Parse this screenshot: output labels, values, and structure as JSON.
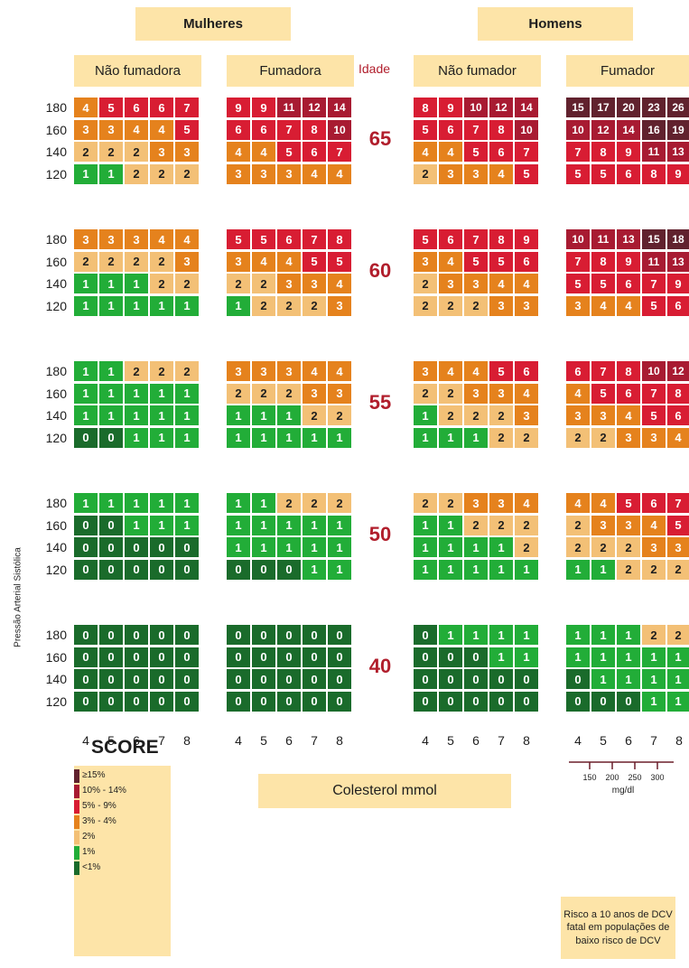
{
  "colors": {
    "5": "#61222e",
    "4": "#a81b32",
    "3": "#d81d33",
    "2": "#e5821d",
    "1": "#f3c076",
    "0": "#22ad38",
    "-1": "#1a6b2b",
    "panel_bg": "#fde4a8",
    "age_label": "#b11e2c"
  },
  "headers": {
    "women": "Mulheres",
    "men": "Homens",
    "idade": "Idade",
    "groups": [
      "Não fumadora",
      "Fumadora",
      "Não fumador",
      "Fumador"
    ]
  },
  "axis": {
    "ylabel": "Pressão Arterial Sistólica",
    "xlabel": "Colesterol mmol",
    "sbp_ticks": [
      "180",
      "160",
      "140",
      "120"
    ],
    "chol_ticks": [
      "4",
      "5",
      "6",
      "7",
      "8"
    ],
    "mgdl_ticks": [
      "150",
      "200",
      "250",
      "300"
    ],
    "mgdl_unit": "mg/dl"
  },
  "chart_data": {
    "type": "heatmap",
    "title": "SCORE",
    "ages": [
      "65",
      "60",
      "55",
      "50",
      "40"
    ],
    "group_order": [
      "Não fumadora",
      "Fumadora",
      "Não fumador",
      "Fumador"
    ],
    "rows_sbp": [
      180,
      160,
      140,
      120
    ],
    "cols_cholesterol_mmol": [
      4,
      5,
      6,
      7,
      8
    ],
    "grids": {
      "65": [
        [
          [
            4,
            5,
            6,
            6,
            7
          ],
          [
            3,
            3,
            4,
            4,
            5
          ],
          [
            2,
            2,
            2,
            3,
            3
          ],
          [
            1,
            1,
            2,
            2,
            2
          ]
        ],
        [
          [
            9,
            9,
            11,
            12,
            14
          ],
          [
            6,
            6,
            7,
            8,
            10
          ],
          [
            4,
            4,
            5,
            6,
            7
          ],
          [
            3,
            3,
            3,
            4,
            4
          ]
        ],
        [
          [
            8,
            9,
            10,
            12,
            14
          ],
          [
            5,
            6,
            7,
            8,
            10
          ],
          [
            4,
            4,
            5,
            6,
            7
          ],
          [
            2,
            3,
            3,
            4,
            5
          ]
        ],
        [
          [
            15,
            17,
            20,
            23,
            26
          ],
          [
            10,
            12,
            14,
            16,
            19
          ],
          [
            7,
            8,
            9,
            11,
            13
          ],
          [
            5,
            5,
            6,
            8,
            9
          ]
        ]
      ],
      "60": [
        [
          [
            3,
            3,
            3,
            4,
            4
          ],
          [
            2,
            2,
            2,
            2,
            3
          ],
          [
            1,
            1,
            1,
            2,
            2
          ],
          [
            1,
            1,
            1,
            1,
            1
          ]
        ],
        [
          [
            5,
            5,
            6,
            7,
            8
          ],
          [
            3,
            4,
            4,
            5,
            5
          ],
          [
            2,
            2,
            3,
            3,
            4
          ],
          [
            1,
            2,
            2,
            2,
            3
          ]
        ],
        [
          [
            5,
            6,
            7,
            8,
            9
          ],
          [
            3,
            4,
            5,
            5,
            6
          ],
          [
            2,
            3,
            3,
            4,
            4
          ],
          [
            2,
            2,
            2,
            3,
            3
          ]
        ],
        [
          [
            10,
            11,
            13,
            15,
            18
          ],
          [
            7,
            8,
            9,
            11,
            13
          ],
          [
            5,
            5,
            6,
            7,
            9
          ],
          [
            3,
            4,
            4,
            5,
            6
          ]
        ]
      ],
      "55": [
        [
          [
            1,
            1,
            2,
            2,
            2
          ],
          [
            1,
            1,
            1,
            1,
            1
          ],
          [
            1,
            1,
            1,
            1,
            1
          ],
          [
            0,
            0,
            1,
            1,
            1
          ]
        ],
        [
          [
            3,
            3,
            3,
            4,
            4
          ],
          [
            2,
            2,
            2,
            3,
            3
          ],
          [
            1,
            1,
            1,
            2,
            2
          ],
          [
            1,
            1,
            1,
            1,
            1
          ]
        ],
        [
          [
            3,
            4,
            4,
            5,
            6
          ],
          [
            2,
            2,
            3,
            3,
            4
          ],
          [
            1,
            2,
            2,
            2,
            3
          ],
          [
            1,
            1,
            1,
            2,
            2
          ]
        ],
        [
          [
            6,
            7,
            8,
            10,
            12
          ],
          [
            4,
            5,
            6,
            7,
            8
          ],
          [
            3,
            3,
            4,
            5,
            6
          ],
          [
            2,
            2,
            3,
            3,
            4
          ]
        ]
      ],
      "50": [
        [
          [
            1,
            1,
            1,
            1,
            1
          ],
          [
            0,
            0,
            1,
            1,
            1
          ],
          [
            0,
            0,
            0,
            0,
            0
          ],
          [
            0,
            0,
            0,
            0,
            0
          ]
        ],
        [
          [
            1,
            1,
            2,
            2,
            2
          ],
          [
            1,
            1,
            1,
            1,
            1
          ],
          [
            1,
            1,
            1,
            1,
            1
          ],
          [
            0,
            0,
            0,
            1,
            1
          ]
        ],
        [
          [
            2,
            2,
            3,
            3,
            4
          ],
          [
            1,
            1,
            2,
            2,
            2
          ],
          [
            1,
            1,
            1,
            1,
            2
          ],
          [
            1,
            1,
            1,
            1,
            1
          ]
        ],
        [
          [
            4,
            4,
            5,
            6,
            7
          ],
          [
            2,
            3,
            3,
            4,
            5
          ],
          [
            2,
            2,
            2,
            3,
            3
          ],
          [
            1,
            1,
            2,
            2,
            2
          ]
        ]
      ],
      "40": [
        [
          [
            0,
            0,
            0,
            0,
            0
          ],
          [
            0,
            0,
            0,
            0,
            0
          ],
          [
            0,
            0,
            0,
            0,
            0
          ],
          [
            0,
            0,
            0,
            0,
            0
          ]
        ],
        [
          [
            0,
            0,
            0,
            0,
            0
          ],
          [
            0,
            0,
            0,
            0,
            0
          ],
          [
            0,
            0,
            0,
            0,
            0
          ],
          [
            0,
            0,
            0,
            0,
            0
          ]
        ],
        [
          [
            0,
            1,
            1,
            1,
            1
          ],
          [
            0,
            0,
            0,
            1,
            1
          ],
          [
            0,
            0,
            0,
            0,
            0
          ],
          [
            0,
            0,
            0,
            0,
            0
          ]
        ],
        [
          [
            1,
            1,
            1,
            2,
            2
          ],
          [
            1,
            1,
            1,
            1,
            1
          ],
          [
            0,
            1,
            1,
            1,
            1
          ],
          [
            0,
            0,
            0,
            1,
            1
          ]
        ]
      ]
    },
    "legend": [
      {
        "label": "≥15%",
        "level": 5
      },
      {
        "label": "10% - 14%",
        "level": 4
      },
      {
        "label": "5% - 9%",
        "level": 3
      },
      {
        "label": "3% - 4%",
        "level": 2
      },
      {
        "label": "2%",
        "level": 1
      },
      {
        "label": "1%",
        "level": 0
      },
      {
        "label": "<1%",
        "level": -1
      }
    ]
  },
  "note": "Risco a 10 anos de DCV fatal em populações de baixo risco de DCV"
}
